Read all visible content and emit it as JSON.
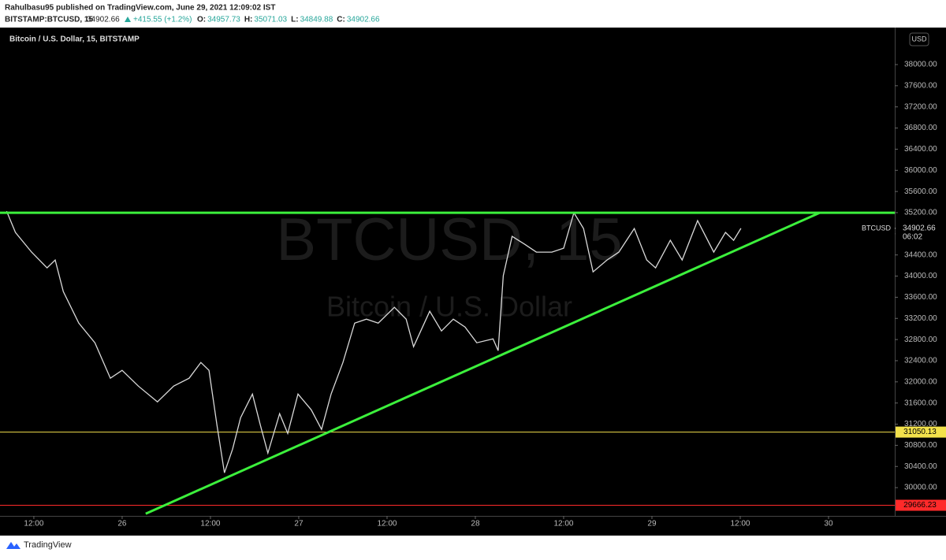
{
  "header": {
    "author_line": "Rahulbasu95 published on TradingView.com, June 29, 2021 12:09:02 IST",
    "symbol": "BITSTAMP:BTCUSD, 15",
    "last": "34902.66",
    "change": "+415.55 (+1.2%)",
    "ohlc": [
      {
        "label": "O:",
        "value": "34957.73"
      },
      {
        "label": "H:",
        "value": "35071.03"
      },
      {
        "label": "L:",
        "value": "34849.88"
      },
      {
        "label": "C:",
        "value": "34902.66"
      }
    ]
  },
  "chart_data": {
    "type": "line",
    "legend_title": "Bitcoin / U.S. Dollar, 15, BITSTAMP",
    "watermark": "BTCUSD, 15",
    "watermark_sub": "Bitcoin / U.S. Dollar",
    "currency": "USD",
    "symbol_label": "BTCUSD",
    "countdown": "06:02",
    "last_price": 34902.66,
    "xlim": [
      7.4,
      129
    ],
    "xticks": [
      {
        "value": 12,
        "label": "12:00"
      },
      {
        "value": 24,
        "label": "26"
      },
      {
        "value": 36,
        "label": "12:00"
      },
      {
        "value": 48,
        "label": "27"
      },
      {
        "value": 60,
        "label": "12:00"
      },
      {
        "value": 72,
        "label": "28"
      },
      {
        "value": 84,
        "label": "12:00"
      },
      {
        "value": 96,
        "label": "29"
      },
      {
        "value": 108,
        "label": "12:00"
      },
      {
        "value": 120,
        "label": "30"
      }
    ],
    "ylim": [
      29510,
      38670
    ],
    "yticks": [
      {
        "value": 30000,
        "label": "30000.00"
      },
      {
        "value": 30400,
        "label": "30400.00"
      },
      {
        "value": 30800,
        "label": "30800.00"
      },
      {
        "value": 31200,
        "label": "31200.00"
      },
      {
        "value": 31600,
        "label": "31600.00"
      },
      {
        "value": 32000,
        "label": "32000.00"
      },
      {
        "value": 32400,
        "label": "32400.00"
      },
      {
        "value": 32800,
        "label": "32800.00"
      },
      {
        "value": 33200,
        "label": "33200.00"
      },
      {
        "value": 33600,
        "label": "33600.00"
      },
      {
        "value": 34000,
        "label": "34000.00"
      },
      {
        "value": 34400,
        "label": "34400.00"
      },
      {
        "value": 34800,
        "label": "34800.00"
      },
      {
        "value": 35200,
        "label": "35200.00"
      },
      {
        "value": 35600,
        "label": "35600.00"
      },
      {
        "value": 36000,
        "label": "36000.00"
      },
      {
        "value": 36400,
        "label": "36400.00"
      },
      {
        "value": 36800,
        "label": "36800.00"
      },
      {
        "value": 37200,
        "label": "37200.00"
      },
      {
        "value": 37600,
        "label": "37600.00"
      },
      {
        "value": 38000,
        "label": "38000.00"
      }
    ],
    "series": [
      {
        "color": "#d9d9d9",
        "x": [
          8.3,
          9.5,
          11.7,
          13.8,
          14.9,
          16.0,
          18.1,
          20.3,
          22.4,
          24.0,
          26.2,
          28.8,
          31.0,
          33.1,
          34.7,
          35.8,
          36.9,
          37.9,
          39.0,
          40.1,
          41.7,
          42.8,
          43.8,
          45.4,
          46.5,
          47.9,
          49.7,
          51.1,
          52.4,
          54.0,
          55.6,
          57.2,
          58.8,
          61.0,
          62.6,
          63.6,
          65.8,
          67.4,
          69.0,
          70.6,
          72.2,
          74.4,
          75.1,
          75.8,
          77.0,
          78.7,
          80.3,
          82.4,
          84.0,
          85.4,
          86.7,
          88.0,
          89.9,
          91.5,
          93.6,
          95.3,
          96.5,
          98.5,
          100.1,
          102.2,
          104.4,
          106.0,
          107.1,
          108.1
        ],
        "values": [
          35228,
          34826,
          34453,
          34155,
          34304,
          33708,
          33112,
          32739,
          32069,
          32218,
          31920,
          31622,
          31920,
          32069,
          32366,
          32218,
          31174,
          30280,
          30727,
          31323,
          31770,
          31174,
          30653,
          31398,
          31025,
          31770,
          31472,
          31100,
          31770,
          32366,
          33112,
          33186,
          33112,
          33410,
          33186,
          32664,
          33335,
          32963,
          33186,
          33037,
          32739,
          32813,
          32590,
          34006,
          34751,
          34602,
          34453,
          34453,
          34528,
          35198,
          34900,
          34080,
          34304,
          34453,
          34900,
          34304,
          34155,
          34677,
          34304,
          35049,
          34453,
          34826,
          34677,
          34902.66
        ]
      }
    ],
    "trendlines": [
      {
        "color": "#3cf03c",
        "x": [
          7.4,
          129
        ],
        "values": [
          35198,
          35198
        ]
      },
      {
        "color": "#3cf03c",
        "x": [
          27.2,
          118.8
        ],
        "values": [
          29505,
          35198
        ]
      }
    ],
    "price_lines": [
      {
        "value": 31050.13,
        "color": "#f2e14b"
      },
      {
        "value": 29666.23,
        "color": "#ff2a2a"
      }
    ]
  },
  "footer": {
    "brand": "TradingView"
  }
}
